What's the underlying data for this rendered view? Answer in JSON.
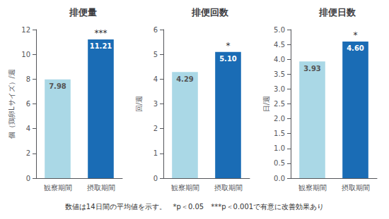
{
  "chart_data": [
    {
      "type": "bar",
      "title": "排便量",
      "ylabel": "個（鶏卵Lサイズ）/週",
      "categories": [
        "観察期間",
        "摂取期間"
      ],
      "values": [
        7.98,
        11.21
      ],
      "value_labels": [
        "7.98",
        "11.21"
      ],
      "data_labels": true,
      "colors": [
        "#aad8e6",
        "#1a6cb5"
      ],
      "ylim": [
        0,
        12
      ],
      "yticks": [
        0,
        2,
        4,
        6,
        8,
        10,
        12
      ],
      "grid": false,
      "annotations": [
        {
          "category": "摂取期間",
          "text": "***"
        }
      ]
    },
    {
      "type": "bar",
      "title": "排便回数",
      "ylabel": "回/週",
      "categories": [
        "観察期間",
        "摂取期間"
      ],
      "values": [
        4.29,
        5.1
      ],
      "value_labels": [
        "4.29",
        "5.10"
      ],
      "data_labels": true,
      "colors": [
        "#aad8e6",
        "#1a6cb5"
      ],
      "ylim": [
        0,
        6
      ],
      "yticks": [
        0,
        1,
        2,
        3,
        4,
        5,
        6
      ],
      "grid": false,
      "annotations": [
        {
          "category": "摂取期間",
          "text": "*"
        }
      ]
    },
    {
      "type": "bar",
      "title": "排便日数",
      "ylabel": "日/週",
      "categories": [
        "観察期間",
        "摂取期間"
      ],
      "values": [
        3.93,
        4.6
      ],
      "value_labels": [
        "3.93",
        "4.60"
      ],
      "data_labels": true,
      "colors": [
        "#aad8e6",
        "#1a6cb5"
      ],
      "ylim": [
        0,
        5
      ],
      "yticks": [
        {
          "value": 0,
          "label": "0.0"
        },
        0.5,
        {
          "value": 1,
          "label": "1.0"
        },
        1.5,
        {
          "value": 2,
          "label": "2.0"
        },
        2.5,
        {
          "value": 3,
          "label": "3.0"
        },
        3.5,
        {
          "value": 4,
          "label": "4.0"
        },
        4.5,
        {
          "value": 5,
          "label": "5.0"
        }
      ],
      "grid": false,
      "annotations": [
        {
          "category": "摂取期間",
          "text": "*"
        }
      ]
    }
  ],
  "caption": "数値は14日間の平均値を示す。　*p＜0.05　***p＜0.001で有意に改善効果あり"
}
